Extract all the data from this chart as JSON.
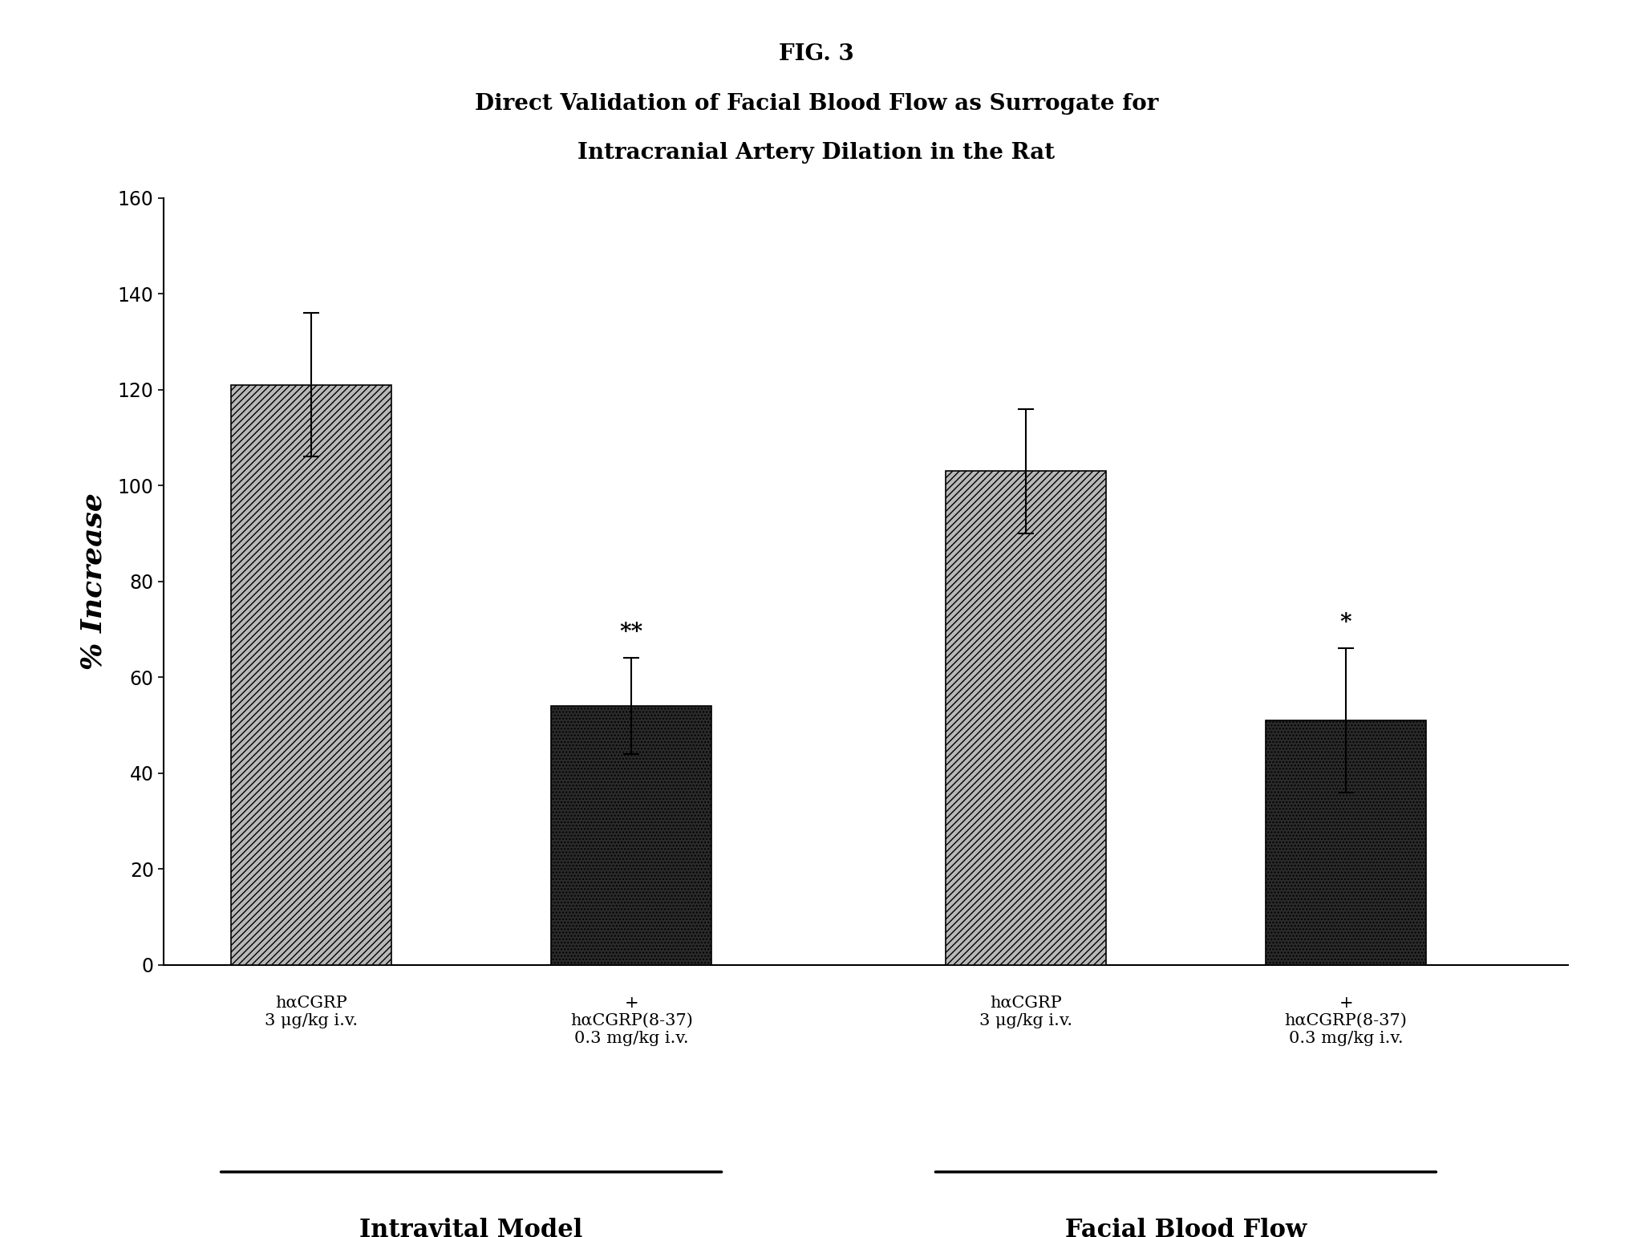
{
  "fig_label": "FIG. 3",
  "title_line1": "Direct Validation of Facial Blood Flow as Surrogate for",
  "title_line2": "Intracranial Artery Dilation in the Rat",
  "ylabel": "% Increase",
  "ylim": [
    0,
    160
  ],
  "yticks": [
    0,
    20,
    40,
    60,
    80,
    100,
    120,
    140,
    160
  ],
  "bars": [
    {
      "value": 121,
      "error": 15,
      "color": "light_hatch",
      "label1": "hαCGRP",
      "label2": "3 μg/kg i.v.",
      "label3": "",
      "sig": ""
    },
    {
      "value": 54,
      "error": 10,
      "color": "dark_dot",
      "label1": "+",
      "label2": "hαCGRP(8-37)",
      "label3": "0.3 mg/kg i.v.",
      "sig": "**"
    },
    {
      "value": 103,
      "error": 13,
      "color": "light_hatch",
      "label1": "hαCGRP",
      "label2": "3 μg/kg i.v.",
      "label3": "",
      "sig": ""
    },
    {
      "value": 51,
      "error": 15,
      "color": "dark_dot",
      "label1": "+",
      "label2": "hαCGRP(8-37)",
      "label3": "0.3 mg/kg i.v.",
      "sig": "*"
    }
  ],
  "group_labels": [
    "Intravital Model",
    "Facial Blood Flow"
  ],
  "bar_width": 0.65,
  "background_color": "#ffffff",
  "x_positions": [
    0,
    1.3,
    2.9,
    4.2
  ]
}
